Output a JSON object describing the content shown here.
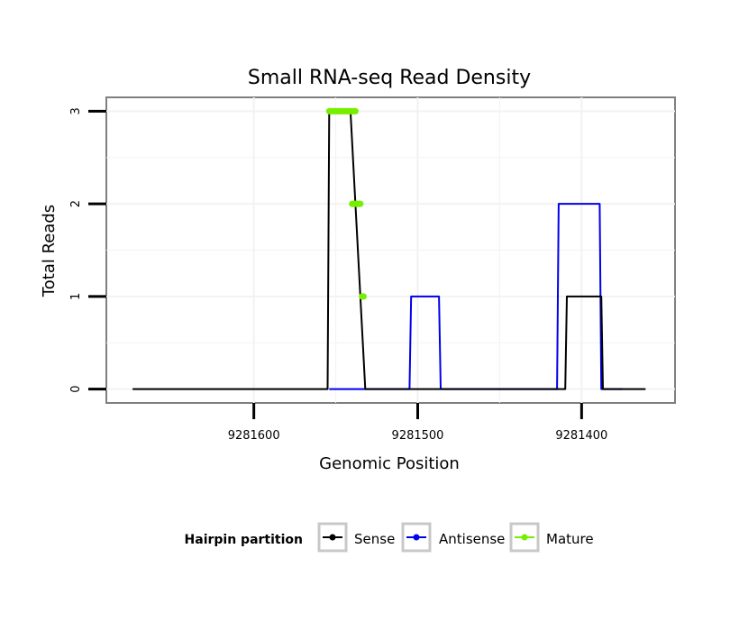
{
  "chart_data": {
    "type": "line",
    "title": "Small RNA-seq Read Density",
    "xlabel": "Genomic Position",
    "ylabel": "Total Reads",
    "x_reversed": true,
    "xlim": [
      9281690,
      9281343
    ],
    "ylim": [
      -0.15,
      3.15
    ],
    "x_ticks": [
      9281600,
      9281500,
      9281400
    ],
    "x_tick_labels": [
      "9281600",
      "9281500",
      "9281400"
    ],
    "y_ticks": [
      0,
      1,
      2,
      3
    ],
    "y_tick_labels": [
      "0",
      "1",
      "2",
      "3"
    ],
    "grid": true,
    "legend": {
      "title": "Hairpin partition",
      "position": "bottom",
      "entries": [
        {
          "label": "Sense",
          "color": "#000000"
        },
        {
          "label": "Antisense",
          "color": "#0000ee"
        },
        {
          "label": "Mature",
          "color": "#76ee00"
        }
      ]
    },
    "series": [
      {
        "name": "Sense",
        "color": "#000000",
        "points": [
          [
            9281674,
            0
          ],
          [
            9281555,
            0
          ],
          [
            9281554,
            3
          ],
          [
            9281541,
            3
          ],
          [
            9281532,
            0
          ],
          [
            9281410,
            0
          ],
          [
            9281409,
            1
          ],
          [
            9281388,
            1
          ],
          [
            9281387,
            0
          ],
          [
            9281361,
            0
          ]
        ]
      },
      {
        "name": "Antisense",
        "color": "#0000ee",
        "points": [
          [
            9281554,
            0
          ],
          [
            9281532,
            0
          ],
          [
            9281505,
            0
          ],
          [
            9281504,
            1
          ],
          [
            9281487,
            1
          ],
          [
            9281486,
            0
          ],
          [
            9281415,
            0
          ],
          [
            9281414,
            2
          ],
          [
            9281389,
            2
          ],
          [
            9281388,
            0
          ],
          [
            9281375,
            0
          ]
        ]
      },
      {
        "name": "Mature",
        "color": "#76ee00",
        "segments": [
          {
            "x": [
              9281554,
              9281538
            ],
            "y": 3
          },
          {
            "x": [
              9281540,
              9281535
            ],
            "y": 2
          },
          {
            "x": [
              9281534,
              9281533
            ],
            "y": 1
          }
        ]
      }
    ]
  }
}
